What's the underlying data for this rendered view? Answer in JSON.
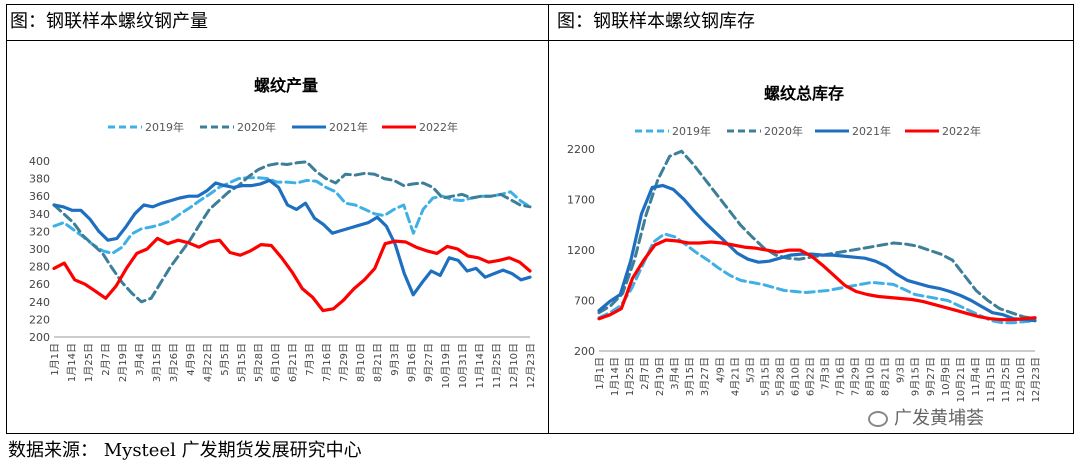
{
  "panels": {
    "left_title": "图：钢联样本螺纹钢产量",
    "right_title": "图：钢联样本螺纹钢库存"
  },
  "source": "数据来源：  Mysteel  广发期货发展研究中心",
  "watermark": "广发黄埔荟",
  "colors": {
    "s2019": "#3fb0e6",
    "s2020": "#3d7f98",
    "s2021": "#1f6fc0",
    "s2022": "#ff0000"
  },
  "chart_data": [
    {
      "type": "line",
      "title": "螺纹产量",
      "ylim": [
        200,
        400
      ],
      "yticks": [
        200,
        220,
        240,
        260,
        280,
        300,
        320,
        340,
        360,
        380,
        400
      ],
      "xticks": [
        "1月1日",
        "1月14日",
        "1月25日",
        "2月7日",
        "2月19日",
        "3月4日",
        "3月15日",
        "3月26日",
        "4月9日",
        "4月22日",
        "5月5日",
        "5月15日",
        "5月28日",
        "6月10日",
        "6月21日",
        "7月3日",
        "7月16日",
        "7月29日",
        "8月10日",
        "8月21日",
        "9月3日",
        "9月16日",
        "9月27日",
        "10月19日",
        "10月31日",
        "11月14日",
        "11月25日",
        "12月10日",
        "12月23日"
      ],
      "legend": [
        "2019年",
        "2020年",
        "2021年",
        "2022年"
      ],
      "series": [
        {
          "name": "2019年",
          "style": "dash",
          "values": [
            326,
            330,
            322,
            314,
            305,
            298,
            295,
            302,
            317,
            323,
            325,
            328,
            332,
            340,
            347,
            355,
            362,
            370,
            375,
            380,
            381,
            381,
            380,
            376,
            376,
            375,
            378,
            377,
            370,
            365,
            352,
            350,
            345,
            340,
            338,
            345,
            350,
            318,
            345,
            358,
            360,
            356,
            355,
            358,
            360,
            360,
            362,
            365,
            355,
            348
          ]
        },
        {
          "name": "2020年",
          "style": "dash",
          "values": [
            350,
            340,
            330,
            315,
            305,
            295,
            278,
            262,
            250,
            240,
            244,
            262,
            280,
            295,
            310,
            328,
            345,
            355,
            365,
            372,
            382,
            390,
            395,
            397,
            396,
            398,
            399,
            388,
            380,
            375,
            385,
            384,
            386,
            385,
            380,
            378,
            372,
            374,
            375,
            370,
            358,
            360,
            362,
            358,
            360,
            360,
            362,
            356,
            350,
            348
          ]
        },
        {
          "name": "2021年",
          "style": "solid",
          "values": [
            350,
            348,
            344,
            344,
            334,
            320,
            310,
            312,
            325,
            340,
            350,
            348,
            352,
            355,
            358,
            360,
            360,
            366,
            375,
            372,
            370,
            372,
            372,
            374,
            378,
            370,
            350,
            345,
            352,
            335,
            328,
            318,
            321,
            324,
            327,
            330,
            336,
            326,
            305,
            272,
            248,
            262,
            275,
            270,
            290,
            287,
            275,
            278,
            268,
            272,
            276,
            272,
            265,
            268
          ]
        },
        {
          "name": "2022年",
          "style": "solid",
          "values": [
            278,
            284,
            265,
            260,
            252,
            244,
            258,
            278,
            295,
            300,
            312,
            306,
            310,
            307,
            302,
            308,
            310,
            296,
            293,
            298,
            305,
            304,
            290,
            274,
            255,
            245,
            230,
            232,
            242,
            255,
            265,
            278,
            306,
            309,
            308,
            302,
            298,
            295,
            303,
            300,
            292,
            290,
            285,
            287,
            290,
            285,
            275
          ]
        }
      ]
    },
    {
      "type": "line",
      "title": "螺纹总库存",
      "ylim": [
        200,
        2400
      ],
      "yticks": [
        200,
        700,
        1200,
        1700,
        2200
      ],
      "xticks": [
        "1月1日",
        "1月14日",
        "1月25日",
        "2月7日",
        "2月19日",
        "3月4日",
        "3月15日",
        "3月27日",
        "4/9日",
        "4月21日",
        "5/3日",
        "5月15日",
        "5月28日",
        "6月10日",
        "6月22日",
        "7月3日",
        "7月16日",
        "7月29日",
        "8月10日",
        "8月21日",
        "9/3日",
        "9月15日",
        "9月27日",
        "10月9日",
        "10月21日",
        "11月4日",
        "11月15日",
        "11月25日",
        "12月10日",
        "12月23日"
      ],
      "legend": [
        "2019年",
        "2020年",
        "2021年",
        "2022年"
      ],
      "series": [
        {
          "name": "2019年",
          "style": "dash",
          "values": [
            530,
            580,
            650,
            820,
            1050,
            1280,
            1360,
            1330,
            1250,
            1170,
            1100,
            1020,
            950,
            900,
            880,
            860,
            830,
            800,
            790,
            780,
            790,
            800,
            820,
            840,
            860,
            880,
            870,
            860,
            810,
            760,
            740,
            720,
            700,
            650,
            600,
            550,
            500,
            480,
            480,
            490,
            500
          ]
        },
        {
          "name": "2020年",
          "style": "dash",
          "values": [
            580,
            650,
            770,
            1100,
            1550,
            1900,
            2130,
            2180,
            2050,
            1900,
            1750,
            1600,
            1450,
            1330,
            1220,
            1150,
            1120,
            1110,
            1130,
            1150,
            1170,
            1190,
            1210,
            1230,
            1250,
            1270,
            1260,
            1240,
            1200,
            1160,
            1100,
            950,
            800,
            700,
            620,
            580,
            540,
            520
          ]
        },
        {
          "name": "2021年",
          "style": "solid",
          "values": [
            600,
            690,
            760,
            1100,
            1560,
            1820,
            1840,
            1800,
            1700,
            1580,
            1470,
            1370,
            1270,
            1170,
            1110,
            1080,
            1090,
            1120,
            1150,
            1160,
            1160,
            1150,
            1150,
            1140,
            1130,
            1120,
            1090,
            1040,
            960,
            900,
            870,
            840,
            820,
            790,
            750,
            700,
            640,
            580,
            560,
            520,
            510,
            500
          ]
        },
        {
          "name": "2022年",
          "style": "solid",
          "values": [
            520,
            560,
            620,
            920,
            1100,
            1250,
            1300,
            1290,
            1270,
            1270,
            1280,
            1270,
            1250,
            1230,
            1220,
            1200,
            1180,
            1200,
            1200,
            1140,
            1050,
            950,
            850,
            790,
            760,
            740,
            730,
            720,
            710,
            690,
            660,
            630,
            600,
            570,
            540,
            520,
            510,
            510,
            520,
            530
          ]
        }
      ]
    }
  ]
}
